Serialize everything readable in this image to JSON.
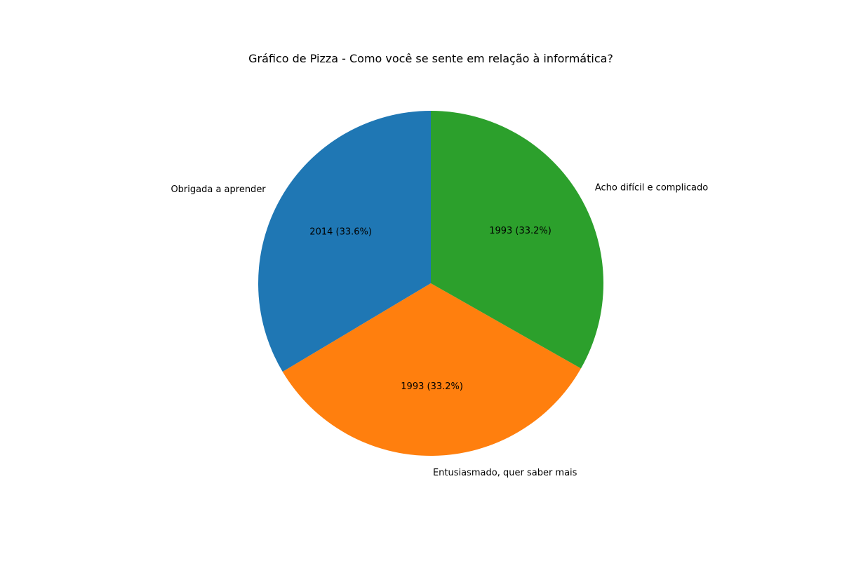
{
  "chart_data": {
    "type": "pie",
    "title": "Gráfico de Pizza - Como você se sente em relação à informática?",
    "start_angle_deg": 90,
    "direction": "counterclockwise",
    "slices": [
      {
        "label": "Obrigada a aprender",
        "value": 2014,
        "value_label": "2014 (33.6%)",
        "color": "#1f77b4"
      },
      {
        "label": "Entusiasmado, quer saber mais",
        "value": 1993,
        "value_label": "1993 (33.2%)",
        "color": "#ff7f0e"
      },
      {
        "label": "Acho difícil e complicado",
        "value": 1993,
        "value_label": "1993 (33.2%)",
        "color": "#2ca02c"
      }
    ]
  }
}
